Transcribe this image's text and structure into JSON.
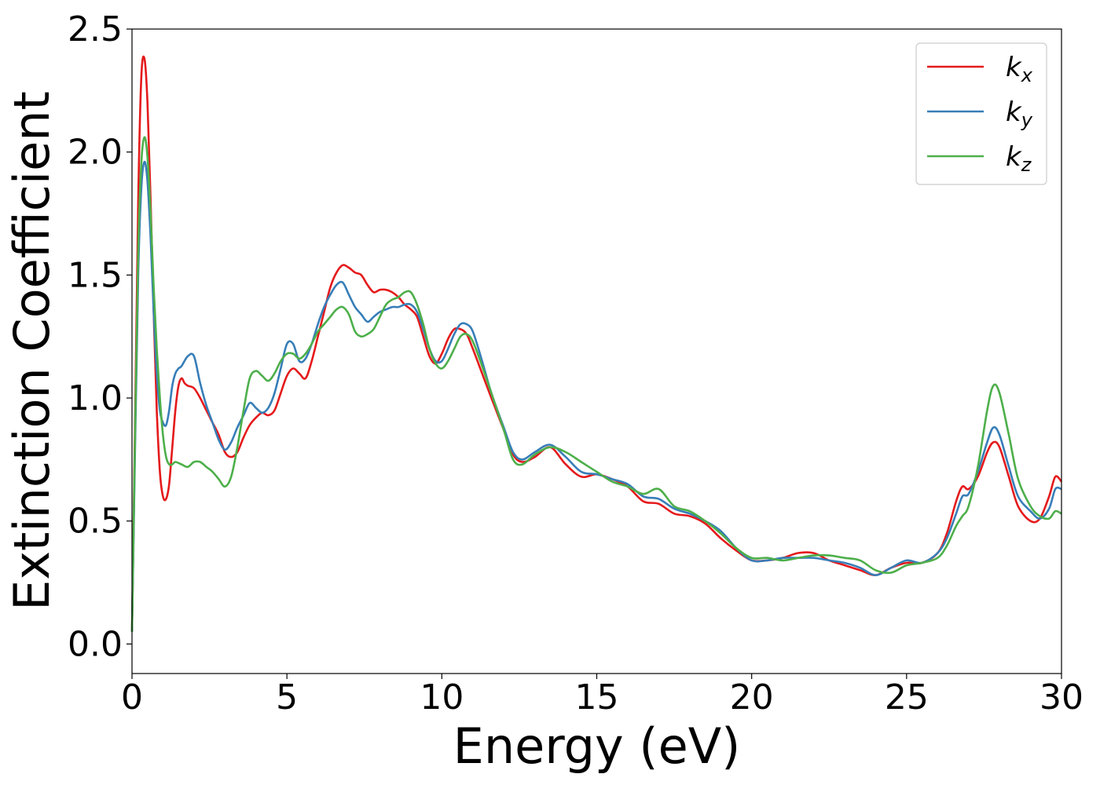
{
  "chart_data": {
    "type": "line",
    "title": "",
    "xlabel": "Energy (eV)",
    "ylabel": "Extinction Coefficient",
    "xlim": [
      0,
      30
    ],
    "ylim": [
      -0.12,
      2.5
    ],
    "xticks": [
      0,
      5,
      10,
      15,
      20,
      25,
      30
    ],
    "xtick_labels": [
      "0",
      "5",
      "10",
      "15",
      "20",
      "25",
      "30"
    ],
    "yticks": [
      0.0,
      0.5,
      1.0,
      1.5,
      2.0,
      2.5
    ],
    "ytick_labels": [
      "0.0",
      "0.5",
      "1.0",
      "1.5",
      "2.0",
      "2.5"
    ],
    "grid": false,
    "legend_position": "top-right",
    "series": [
      {
        "name": "kx",
        "base": "k",
        "sub": "x",
        "color": "#e41a1c",
        "x": [
          0,
          0.1,
          0.2,
          0.3,
          0.4,
          0.5,
          0.6,
          0.7,
          0.8,
          0.9,
          1.0,
          1.1,
          1.2,
          1.3,
          1.4,
          1.5,
          1.6,
          1.7,
          1.8,
          2.0,
          2.2,
          2.4,
          2.6,
          2.8,
          3.0,
          3.2,
          3.4,
          3.6,
          3.8,
          4.0,
          4.2,
          4.4,
          4.6,
          4.8,
          5.0,
          5.2,
          5.4,
          5.6,
          5.8,
          6.0,
          6.2,
          6.4,
          6.6,
          6.8,
          7.0,
          7.2,
          7.4,
          7.6,
          7.8,
          8.0,
          8.2,
          8.4,
          8.6,
          8.8,
          9.0,
          9.2,
          9.4,
          9.6,
          9.8,
          10.0,
          10.2,
          10.4,
          10.6,
          10.8,
          11.0,
          11.3,
          11.6,
          12.0,
          12.3,
          12.6,
          13.0,
          13.5,
          14.0,
          14.5,
          15.0,
          15.5,
          16.0,
          16.5,
          17.0,
          17.5,
          18.0,
          18.5,
          19.0,
          19.5,
          20.0,
          20.5,
          21.0,
          21.5,
          22.0,
          22.5,
          23.0,
          23.5,
          24.0,
          24.5,
          25.0,
          25.5,
          26.0,
          26.3,
          26.6,
          26.8,
          27.0,
          27.3,
          27.6,
          27.8,
          28.0,
          28.3,
          28.6,
          29.0,
          29.3,
          29.6,
          29.8,
          30.0
        ],
        "y": [
          0.05,
          0.9,
          1.8,
          2.3,
          2.38,
          2.2,
          1.8,
          1.35,
          0.95,
          0.7,
          0.6,
          0.59,
          0.65,
          0.8,
          0.95,
          1.05,
          1.08,
          1.06,
          1.05,
          1.04,
          1.0,
          0.95,
          0.9,
          0.85,
          0.78,
          0.76,
          0.78,
          0.84,
          0.89,
          0.92,
          0.94,
          0.93,
          0.95,
          1.02,
          1.09,
          1.12,
          1.1,
          1.08,
          1.15,
          1.25,
          1.35,
          1.45,
          1.51,
          1.54,
          1.53,
          1.51,
          1.5,
          1.46,
          1.43,
          1.44,
          1.44,
          1.43,
          1.41,
          1.38,
          1.36,
          1.33,
          1.25,
          1.17,
          1.14,
          1.18,
          1.24,
          1.28,
          1.28,
          1.26,
          1.2,
          1.1,
          1.0,
          0.87,
          0.77,
          0.74,
          0.76,
          0.8,
          0.73,
          0.68,
          0.69,
          0.67,
          0.64,
          0.58,
          0.57,
          0.53,
          0.52,
          0.49,
          0.43,
          0.38,
          0.34,
          0.34,
          0.35,
          0.37,
          0.37,
          0.34,
          0.32,
          0.3,
          0.28,
          0.31,
          0.33,
          0.33,
          0.37,
          0.45,
          0.58,
          0.64,
          0.63,
          0.68,
          0.78,
          0.82,
          0.8,
          0.68,
          0.56,
          0.5,
          0.51,
          0.6,
          0.68,
          0.66
        ]
      },
      {
        "name": "ky",
        "base": "k",
        "sub": "y",
        "color": "#377eb8",
        "x": [
          0,
          0.1,
          0.2,
          0.3,
          0.4,
          0.5,
          0.6,
          0.7,
          0.8,
          0.9,
          1.0,
          1.1,
          1.2,
          1.3,
          1.4,
          1.5,
          1.6,
          1.8,
          2.0,
          2.2,
          2.4,
          2.6,
          2.8,
          3.0,
          3.2,
          3.4,
          3.6,
          3.8,
          4.0,
          4.2,
          4.4,
          4.6,
          4.8,
          5.0,
          5.2,
          5.4,
          5.6,
          5.8,
          6.0,
          6.2,
          6.4,
          6.6,
          6.8,
          7.0,
          7.2,
          7.4,
          7.6,
          7.8,
          8.0,
          8.2,
          8.4,
          8.6,
          8.8,
          9.0,
          9.2,
          9.4,
          9.6,
          9.8,
          10.0,
          10.2,
          10.4,
          10.6,
          10.8,
          11.0,
          11.3,
          11.6,
          12.0,
          12.3,
          12.6,
          13.0,
          13.5,
          14.0,
          14.5,
          15.0,
          15.5,
          16.0,
          16.5,
          17.0,
          17.5,
          18.0,
          18.5,
          19.0,
          19.5,
          20.0,
          20.5,
          21.0,
          21.5,
          22.0,
          22.5,
          23.0,
          23.5,
          24.0,
          24.5,
          25.0,
          25.5,
          26.0,
          26.3,
          26.6,
          26.8,
          27.0,
          27.3,
          27.6,
          27.8,
          28.0,
          28.3,
          28.6,
          29.0,
          29.3,
          29.6,
          29.8,
          30.0
        ],
        "y": [
          0.05,
          0.8,
          1.5,
          1.85,
          1.96,
          1.88,
          1.65,
          1.35,
          1.1,
          0.95,
          0.9,
          0.89,
          0.95,
          1.05,
          1.1,
          1.12,
          1.13,
          1.17,
          1.17,
          1.06,
          0.97,
          0.9,
          0.83,
          0.79,
          0.82,
          0.88,
          0.93,
          0.98,
          0.96,
          0.94,
          0.96,
          1.02,
          1.12,
          1.22,
          1.22,
          1.15,
          1.16,
          1.22,
          1.3,
          1.37,
          1.42,
          1.46,
          1.47,
          1.42,
          1.37,
          1.34,
          1.31,
          1.33,
          1.35,
          1.36,
          1.37,
          1.37,
          1.38,
          1.38,
          1.35,
          1.28,
          1.2,
          1.15,
          1.15,
          1.2,
          1.26,
          1.3,
          1.3,
          1.27,
          1.15,
          1.02,
          0.88,
          0.78,
          0.75,
          0.78,
          0.81,
          0.76,
          0.7,
          0.69,
          0.67,
          0.65,
          0.6,
          0.59,
          0.55,
          0.53,
          0.5,
          0.46,
          0.39,
          0.34,
          0.34,
          0.35,
          0.35,
          0.35,
          0.34,
          0.33,
          0.31,
          0.28,
          0.31,
          0.34,
          0.33,
          0.37,
          0.43,
          0.53,
          0.6,
          0.61,
          0.7,
          0.82,
          0.88,
          0.85,
          0.72,
          0.6,
          0.54,
          0.51,
          0.55,
          0.63,
          0.63
        ]
      },
      {
        "name": "kz",
        "base": "k",
        "sub": "z",
        "color": "#4daf4a",
        "x": [
          0,
          0.1,
          0.2,
          0.3,
          0.4,
          0.5,
          0.6,
          0.7,
          0.8,
          0.9,
          1.0,
          1.1,
          1.2,
          1.3,
          1.4,
          1.6,
          1.8,
          2.0,
          2.2,
          2.4,
          2.6,
          2.8,
          3.0,
          3.2,
          3.4,
          3.6,
          3.8,
          4.0,
          4.2,
          4.4,
          4.6,
          4.8,
          5.0,
          5.2,
          5.4,
          5.6,
          5.8,
          6.0,
          6.2,
          6.4,
          6.6,
          6.8,
          7.0,
          7.2,
          7.4,
          7.6,
          7.8,
          8.0,
          8.2,
          8.4,
          8.6,
          8.8,
          9.0,
          9.2,
          9.4,
          9.6,
          9.8,
          10.0,
          10.2,
          10.4,
          10.6,
          10.8,
          11.0,
          11.3,
          11.6,
          12.0,
          12.3,
          12.6,
          13.0,
          13.5,
          14.0,
          14.5,
          15.0,
          15.5,
          16.0,
          16.5,
          17.0,
          17.5,
          18.0,
          18.5,
          19.0,
          19.5,
          20.0,
          20.5,
          21.0,
          21.5,
          22.0,
          22.5,
          23.0,
          23.5,
          24.0,
          24.5,
          25.0,
          25.5,
          26.0,
          26.3,
          26.6,
          26.8,
          27.0,
          27.3,
          27.6,
          27.8,
          28.0,
          28.3,
          28.6,
          29.0,
          29.3,
          29.6,
          29.8,
          30.0
        ],
        "y": [
          0.05,
          0.85,
          1.6,
          1.95,
          2.06,
          1.98,
          1.75,
          1.45,
          1.2,
          1.0,
          0.85,
          0.76,
          0.73,
          0.73,
          0.74,
          0.73,
          0.72,
          0.74,
          0.74,
          0.72,
          0.7,
          0.67,
          0.64,
          0.68,
          0.8,
          0.95,
          1.08,
          1.11,
          1.09,
          1.07,
          1.1,
          1.15,
          1.18,
          1.18,
          1.16,
          1.18,
          1.22,
          1.27,
          1.3,
          1.33,
          1.36,
          1.37,
          1.34,
          1.27,
          1.25,
          1.26,
          1.28,
          1.33,
          1.38,
          1.4,
          1.41,
          1.43,
          1.43,
          1.38,
          1.3,
          1.2,
          1.14,
          1.12,
          1.15,
          1.2,
          1.25,
          1.26,
          1.23,
          1.13,
          1.02,
          0.87,
          0.75,
          0.73,
          0.77,
          0.8,
          0.78,
          0.74,
          0.7,
          0.66,
          0.64,
          0.61,
          0.63,
          0.56,
          0.54,
          0.5,
          0.45,
          0.39,
          0.35,
          0.35,
          0.34,
          0.35,
          0.36,
          0.36,
          0.35,
          0.34,
          0.3,
          0.29,
          0.32,
          0.33,
          0.35,
          0.4,
          0.48,
          0.52,
          0.56,
          0.72,
          0.95,
          1.05,
          1.02,
          0.85,
          0.67,
          0.56,
          0.52,
          0.51,
          0.54,
          0.53
        ]
      }
    ]
  }
}
